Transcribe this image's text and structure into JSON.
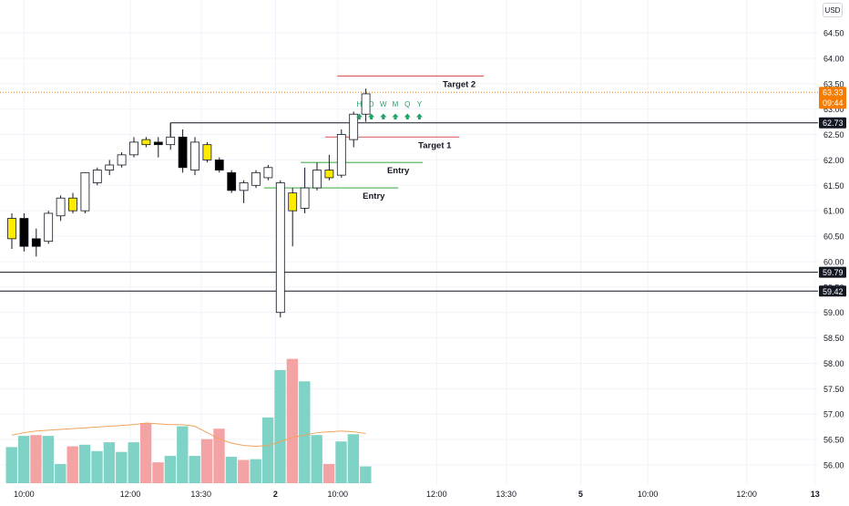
{
  "currency": "USD",
  "colors": {
    "grid": "#f0f3fa",
    "axis_text": "#131722",
    "candle_outline": "#131722",
    "candle_up_fill": "#ffffff",
    "candle_down_fill": "#000000",
    "candle_inside_fill": "#ffeb00",
    "volume_up": "#7fd3c6",
    "volume_down": "#f4a3a5",
    "volume_ma": "#f0a35e",
    "last_price": "#f57c00",
    "target_line": "#e06666",
    "entry_line": "#4caf50",
    "level_line": "#131722",
    "signal": "#26a269"
  },
  "chart_data": {
    "type": "candlestick",
    "ylim": [
      55.85,
      64.85
    ],
    "y_ticks": [
      "56.00",
      "56.50",
      "57.00",
      "57.50",
      "58.00",
      "58.50",
      "59.00",
      "59.50",
      "60.00",
      "60.50",
      "61.00",
      "61.50",
      "62.00",
      "62.50",
      "63.00",
      "63.50",
      "64.00",
      "64.50"
    ],
    "x_ticks": [
      {
        "label": "10:00",
        "index": 1
      },
      {
        "label": "12:00",
        "index": 9.7
      },
      {
        "label": "13:30",
        "index": 15.5
      },
      {
        "label": "2",
        "index": 21.6,
        "bold": true
      },
      {
        "label": "10:00",
        "index": 26.7
      },
      {
        "label": "12:00",
        "index": 34.8
      },
      {
        "label": "13:30",
        "index": 40.5
      },
      {
        "label": "5",
        "index": 46.6,
        "bold": true
      },
      {
        "label": "10:00",
        "index": 52.1
      },
      {
        "label": "12:00",
        "index": 60.2
      },
      {
        "label": "13",
        "index": 65.8,
        "bold": true
      }
    ],
    "candles": [
      {
        "o": 60.45,
        "h": 60.95,
        "l": 60.25,
        "c": 60.85,
        "style": "inside"
      },
      {
        "o": 60.85,
        "h": 60.95,
        "l": 60.2,
        "c": 60.3,
        "style": "down"
      },
      {
        "o": 60.45,
        "h": 60.65,
        "l": 60.1,
        "c": 60.3,
        "style": "down"
      },
      {
        "o": 60.4,
        "h": 61.0,
        "l": 60.35,
        "c": 60.95,
        "style": "up"
      },
      {
        "o": 60.9,
        "h": 61.3,
        "l": 60.8,
        "c": 61.25,
        "style": "up"
      },
      {
        "o": 61.25,
        "h": 61.35,
        "l": 60.95,
        "c": 61.0,
        "style": "inside"
      },
      {
        "o": 61.0,
        "h": 61.75,
        "l": 60.95,
        "c": 61.75,
        "style": "up"
      },
      {
        "o": 61.55,
        "h": 61.85,
        "l": 61.5,
        "c": 61.8,
        "style": "up"
      },
      {
        "o": 61.8,
        "h": 62.0,
        "l": 61.7,
        "c": 61.9,
        "style": "up"
      },
      {
        "o": 61.9,
        "h": 62.15,
        "l": 61.85,
        "c": 62.1,
        "style": "up"
      },
      {
        "o": 62.1,
        "h": 62.45,
        "l": 62.05,
        "c": 62.35,
        "style": "up"
      },
      {
        "o": 62.4,
        "h": 62.45,
        "l": 62.25,
        "c": 62.3,
        "style": "inside"
      },
      {
        "o": 62.35,
        "h": 62.45,
        "l": 62.05,
        "c": 62.3,
        "style": "down"
      },
      {
        "o": 62.3,
        "h": 62.73,
        "l": 62.2,
        "c": 62.45,
        "style": "up"
      },
      {
        "o": 62.45,
        "h": 62.6,
        "l": 61.75,
        "c": 61.85,
        "style": "down"
      },
      {
        "o": 61.8,
        "h": 62.45,
        "l": 61.7,
        "c": 62.35,
        "style": "up"
      },
      {
        "o": 62.3,
        "h": 62.35,
        "l": 61.95,
        "c": 62.0,
        "style": "inside"
      },
      {
        "o": 62.0,
        "h": 62.05,
        "l": 61.75,
        "c": 61.8,
        "style": "down"
      },
      {
        "o": 61.75,
        "h": 61.8,
        "l": 61.35,
        "c": 61.4,
        "style": "down"
      },
      {
        "o": 61.4,
        "h": 61.6,
        "l": 61.15,
        "c": 61.55,
        "style": "up"
      },
      {
        "o": 61.5,
        "h": 61.8,
        "l": 61.45,
        "c": 61.75,
        "style": "up"
      },
      {
        "o": 61.65,
        "h": 61.9,
        "l": 61.6,
        "c": 61.85,
        "style": "up"
      },
      {
        "o": 59.0,
        "h": 61.6,
        "l": 58.9,
        "c": 61.55,
        "style": "up"
      },
      {
        "o": 61.0,
        "h": 61.45,
        "l": 60.3,
        "c": 61.35,
        "style": "inside"
      },
      {
        "o": 61.05,
        "h": 61.85,
        "l": 60.95,
        "c": 61.45,
        "style": "up"
      },
      {
        "o": 61.45,
        "h": 61.95,
        "l": 61.4,
        "c": 61.8,
        "style": "up"
      },
      {
        "o": 61.65,
        "h": 62.1,
        "l": 61.6,
        "c": 61.8,
        "style": "inside"
      },
      {
        "o": 61.7,
        "h": 62.6,
        "l": 61.65,
        "c": 62.5,
        "style": "up"
      },
      {
        "o": 62.4,
        "h": 62.95,
        "l": 62.25,
        "c": 62.9,
        "style": "up"
      },
      {
        "o": 62.9,
        "h": 63.4,
        "l": 62.75,
        "c": 63.3,
        "style": "up"
      }
    ],
    "volume": [
      {
        "v": 0.45,
        "dir": "up"
      },
      {
        "v": 0.59,
        "dir": "up"
      },
      {
        "v": 0.6,
        "dir": "down"
      },
      {
        "v": 0.59,
        "dir": "up"
      },
      {
        "v": 0.24,
        "dir": "up"
      },
      {
        "v": 0.46,
        "dir": "down"
      },
      {
        "v": 0.48,
        "dir": "up"
      },
      {
        "v": 0.4,
        "dir": "up"
      },
      {
        "v": 0.51,
        "dir": "up"
      },
      {
        "v": 0.39,
        "dir": "up"
      },
      {
        "v": 0.51,
        "dir": "up"
      },
      {
        "v": 0.75,
        "dir": "down"
      },
      {
        "v": 0.26,
        "dir": "down"
      },
      {
        "v": 0.34,
        "dir": "up"
      },
      {
        "v": 0.71,
        "dir": "up"
      },
      {
        "v": 0.34,
        "dir": "up"
      },
      {
        "v": 0.55,
        "dir": "down"
      },
      {
        "v": 0.68,
        "dir": "down"
      },
      {
        "v": 0.33,
        "dir": "up"
      },
      {
        "v": 0.29,
        "dir": "down"
      },
      {
        "v": 0.3,
        "dir": "up"
      },
      {
        "v": 0.82,
        "dir": "up"
      },
      {
        "v": 1.41,
        "dir": "up"
      },
      {
        "v": 1.55,
        "dir": "down"
      },
      {
        "v": 1.27,
        "dir": "up"
      },
      {
        "v": 0.6,
        "dir": "up"
      },
      {
        "v": 0.24,
        "dir": "down"
      },
      {
        "v": 0.52,
        "dir": "up"
      },
      {
        "v": 0.61,
        "dir": "up"
      },
      {
        "v": 0.21,
        "dir": "up"
      }
    ],
    "volume_ylim": [
      0,
      1.7
    ],
    "volume_ma": [
      0.6,
      0.63,
      0.65,
      0.66,
      0.67,
      0.68,
      0.69,
      0.7,
      0.71,
      0.72,
      0.73,
      0.75,
      0.74,
      0.73,
      0.73,
      0.71,
      0.63,
      0.55,
      0.5,
      0.47,
      0.46,
      0.47,
      0.52,
      0.57,
      0.6,
      0.63,
      0.64,
      0.65,
      0.64,
      0.62
    ],
    "last_price": {
      "value": 63.33,
      "label": "63.33",
      "countdown": "09:44"
    },
    "horizontal_levels": [
      {
        "value": 62.73,
        "label": "62.73"
      },
      {
        "value": 59.79,
        "label": "59.79"
      },
      {
        "value": 59.42,
        "label": "59.42"
      }
    ],
    "ray": {
      "value": 62.73,
      "from_index": 13
    },
    "targets": [
      {
        "label": "Target 2",
        "value": 63.65,
        "from_index": 27,
        "to_index": 39
      },
      {
        "label": "Target 1",
        "value": 62.45,
        "from_index": 26,
        "to_index": 37
      },
      {
        "label": "Entry",
        "value": 61.95,
        "from_index": 24,
        "to_index": 34
      },
      {
        "label": "Entry",
        "value": 61.45,
        "from_index": 21,
        "to_index": 32
      }
    ],
    "signals": {
      "timeframes": [
        "H",
        "D",
        "W",
        "M",
        "Q",
        "Y"
      ],
      "directions": [
        "up",
        "up",
        "up",
        "up",
        "up",
        "up"
      ],
      "from_index": 28.8
    }
  }
}
